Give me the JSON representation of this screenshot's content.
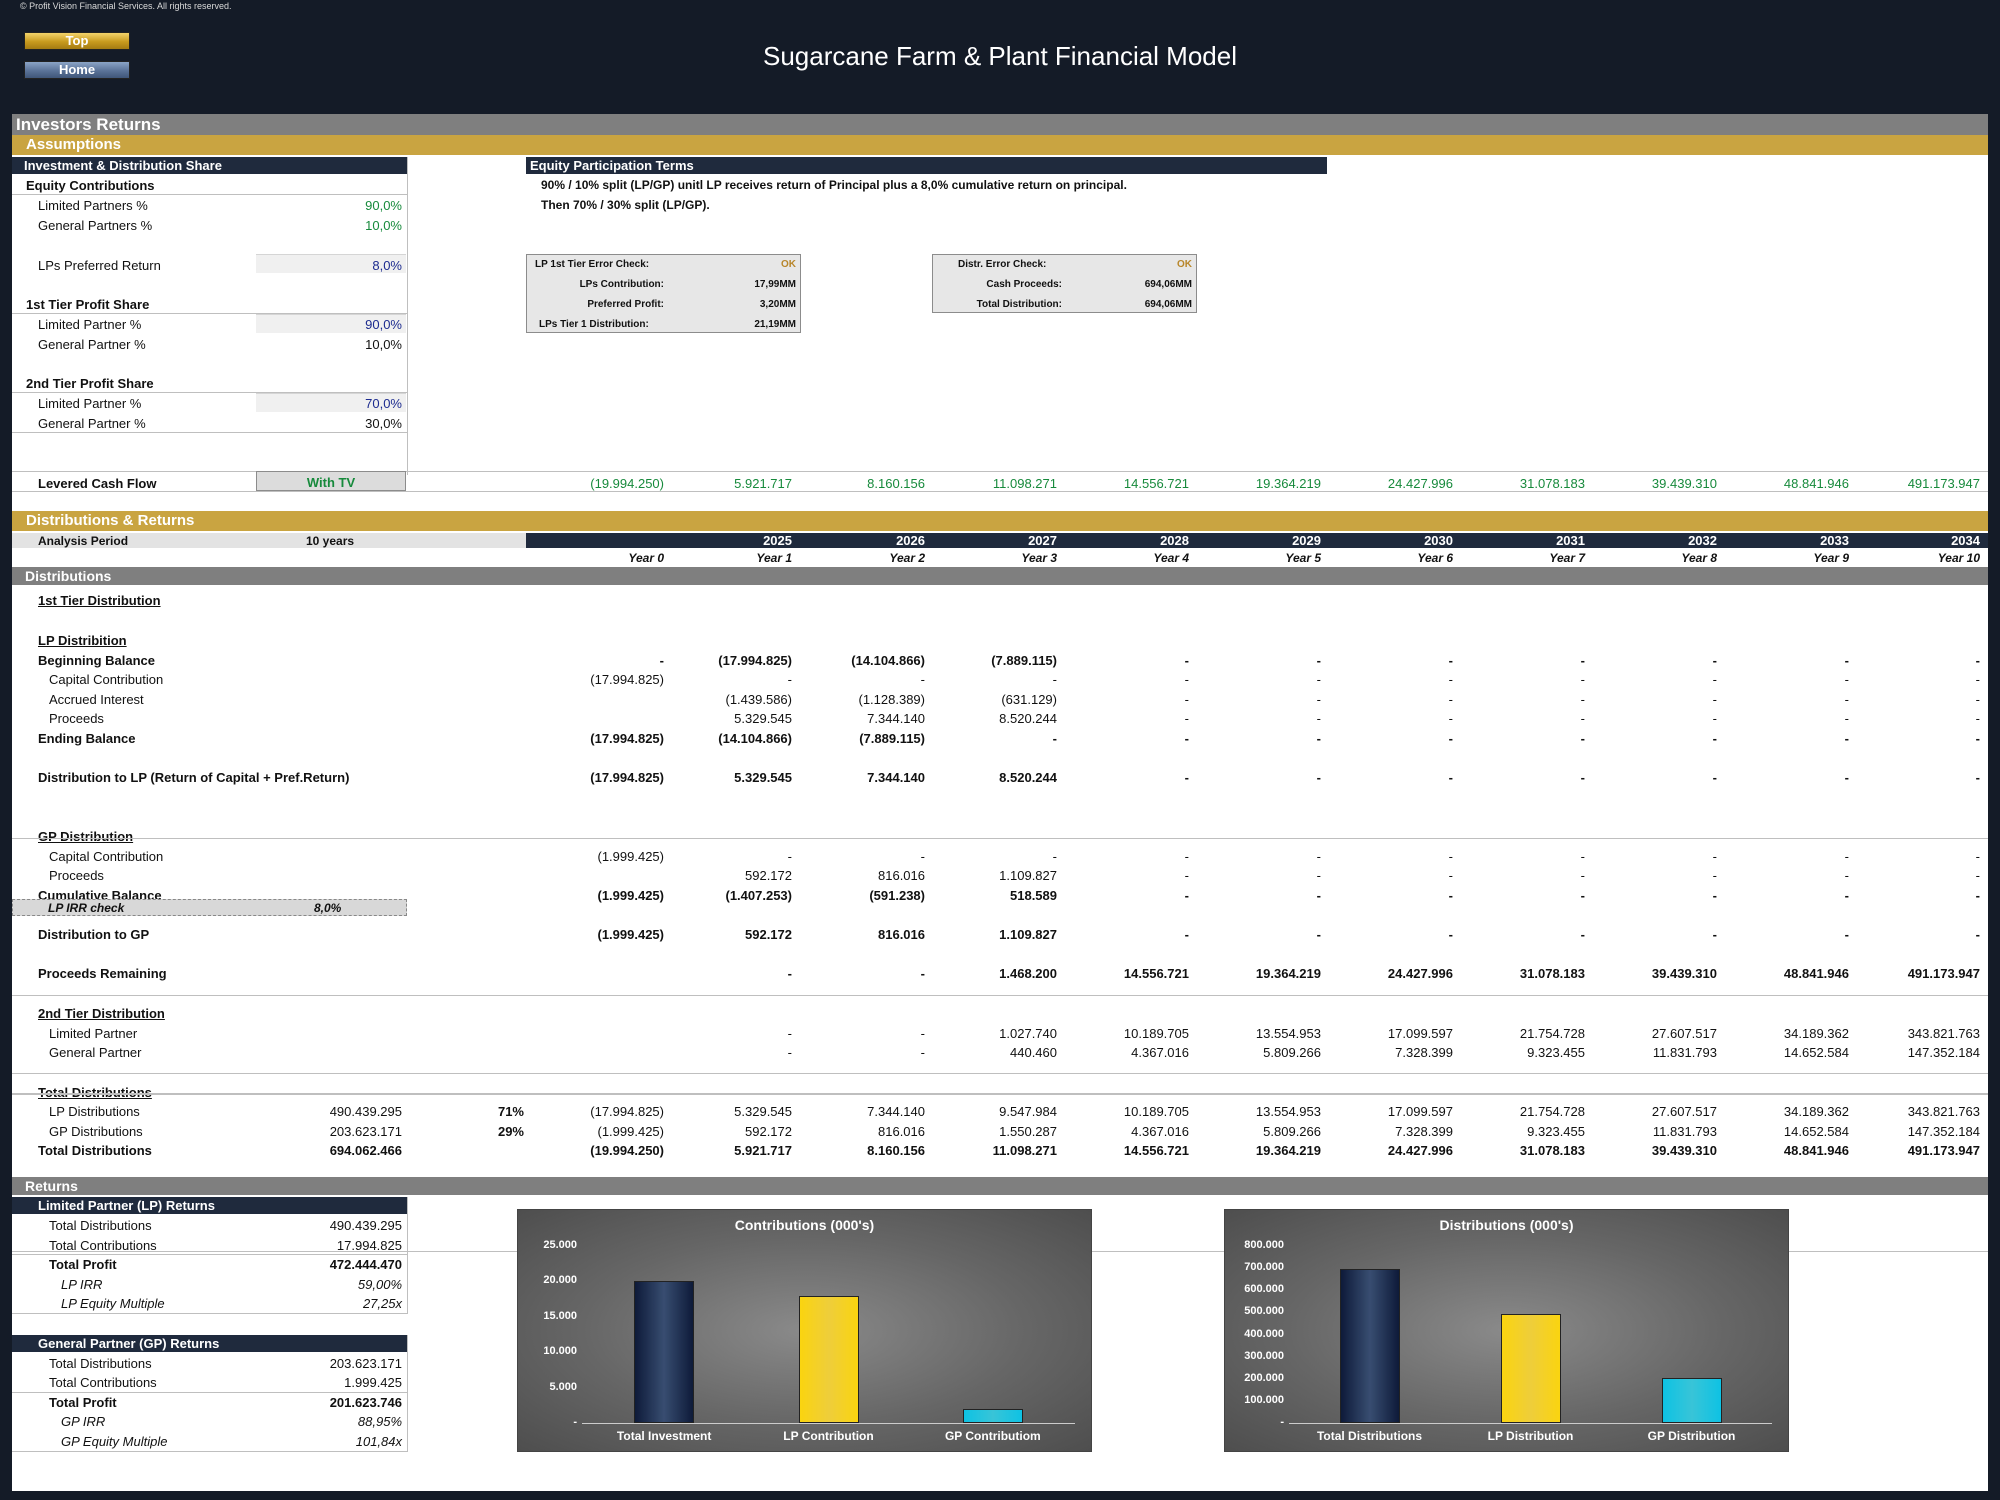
{
  "app": {
    "copyright": "© Profit Vision Financial Services. All rights reserved.",
    "title": "Sugarcane Farm & Plant Financial Model",
    "nav_top": "Top",
    "nav_home": "Home"
  },
  "sections": {
    "main": "Investors Returns",
    "assumptions": "Assumptions",
    "dist_returns": "Distributions & Returns",
    "distributions": "Distributions",
    "returns": "Returns"
  },
  "assump": {
    "header": "Investment & Distribution Share",
    "equity_contrib": "Equity Contributions",
    "lp_pct_label": "Limited Partners %",
    "lp_pct": "90,0%",
    "gp_pct_label": "General Partners %",
    "gp_pct": "10,0%",
    "pref_label": "LPs Preferred Return",
    "pref": "8,0%",
    "tier1": "1st Tier Profit Share",
    "t1_lp_label": "Limited Partner %",
    "t1_lp": "90,0%",
    "t1_gp_label": "General Partner %",
    "t1_gp": "10,0%",
    "tier2": "2nd Tier Profit Share",
    "t2_lp_label": "Limited Partner %",
    "t2_lp": "70,0%",
    "t2_gp_label": "General Partner %",
    "t2_gp": "30,0%"
  },
  "terms": {
    "header": "Equity Participation Terms",
    "line1": "90% / 10% split (LP/GP) unitl LP receives return of Principal plus a 8,0% cumulative return on principal.",
    "line2": "Then 70% / 30% split (LP/GP)."
  },
  "check1": {
    "r1l": "LP 1st Tier Error Check:",
    "r1v": "OK",
    "r2l": "LPs Contribution:",
    "r2v": "17,99MM",
    "r3l": "Preferred Profit:",
    "r3v": "3,20MM",
    "r4l": "LPs Tier 1 Distribution:",
    "r4v": "21,19MM"
  },
  "check2": {
    "r1l": "Distr. Error Check:",
    "r1v": "OK",
    "r2l": "Cash Proceeds:",
    "r2v": "694,06MM",
    "r3l": "Total Distribution:",
    "r3v": "694,06MM"
  },
  "levered": {
    "label": "Levered Cash Flow",
    "option": "With TV",
    "values": [
      "(19.994.250)",
      "5.921.717",
      "8.160.156",
      "11.098.271",
      "14.556.721",
      "19.364.219",
      "24.427.996",
      "31.078.183",
      "39.439.310",
      "48.841.946",
      "491.173.947"
    ]
  },
  "period": {
    "label": "Analysis Period",
    "value": "10 years"
  },
  "years": [
    "2025",
    "2026",
    "2027",
    "2028",
    "2029",
    "2030",
    "2031",
    "2032",
    "2033",
    "2034"
  ],
  "year_labels": [
    "Year 0",
    "Year 1",
    "Year 2",
    "Year 3",
    "Year 4",
    "Year 5",
    "Year 6",
    "Year 7",
    "Year 8",
    "Year 9",
    "Year 10"
  ],
  "rows": [
    {
      "label": "1st Tier Distribution",
      "style": "b u",
      "y": 591,
      "values": []
    },
    {
      "label": "LP Distribition",
      "style": "b u",
      "y": 631,
      "values": []
    },
    {
      "label": "Beginning Balance",
      "style": "b",
      "y": 651,
      "values": [
        "-",
        "(17.994.825)",
        "(14.104.866)",
        "(7.889.115)",
        "-",
        "-",
        "-",
        "-",
        "-",
        "-",
        "-"
      ]
    },
    {
      "label": "Capital Contribution",
      "style": "ind",
      "y": 670,
      "values": [
        "(17.994.825)",
        "-",
        "-",
        "-",
        "-",
        "-",
        "-",
        "-",
        "-",
        "-",
        "-"
      ]
    },
    {
      "label": "Accrued Interest",
      "style": "ind",
      "y": 690,
      "values": [
        "",
        "(1.439.586)",
        "(1.128.389)",
        "(631.129)",
        "-",
        "-",
        "-",
        "-",
        "-",
        "-",
        "-"
      ]
    },
    {
      "label": "Proceeds",
      "style": "ind",
      "y": 709,
      "values": [
        "",
        "5.329.545",
        "7.344.140",
        "8.520.244",
        "-",
        "-",
        "-",
        "-",
        "-",
        "-",
        "-"
      ]
    },
    {
      "label": "Ending Balance",
      "style": "b",
      "y": 729,
      "values": [
        "(17.994.825)",
        "(14.104.866)",
        "(7.889.115)",
        "-",
        "-",
        "-",
        "-",
        "-",
        "-",
        "-",
        "-"
      ]
    },
    {
      "label": "Distribution to LP (Return of Capital + Pref.Return)",
      "style": "b",
      "y": 768,
      "values": [
        "(17.994.825)",
        "5.329.545",
        "7.344.140",
        "8.520.244",
        "-",
        "-",
        "-",
        "-",
        "-",
        "-",
        "-"
      ]
    },
    {
      "label": "GP Distribution",
      "style": "b u",
      "y": 827,
      "values": []
    },
    {
      "label": "Capital Contribution",
      "style": "ind",
      "y": 847,
      "values": [
        "(1.999.425)",
        "-",
        "-",
        "-",
        "-",
        "-",
        "-",
        "-",
        "-",
        "-",
        "-"
      ]
    },
    {
      "label": "Proceeds",
      "style": "ind",
      "y": 866,
      "values": [
        "",
        "592.172",
        "816.016",
        "1.109.827",
        "-",
        "-",
        "-",
        "-",
        "-",
        "-",
        "-"
      ]
    },
    {
      "label": "Cumulative Balance",
      "style": "b",
      "y": 886,
      "values": [
        "(1.999.425)",
        "(1.407.253)",
        "(591.238)",
        "518.589",
        "-",
        "-",
        "-",
        "-",
        "-",
        "-",
        "-"
      ]
    },
    {
      "label": "Distribution to GP",
      "style": "b",
      "y": 925,
      "values": [
        "(1.999.425)",
        "592.172",
        "816.016",
        "1.109.827",
        "-",
        "-",
        "-",
        "-",
        "-",
        "-",
        "-"
      ]
    },
    {
      "label": "Proceeds Remaining",
      "style": "b",
      "y": 964,
      "values": [
        "",
        "-",
        "-",
        "1.468.200",
        "14.556.721",
        "19.364.219",
        "24.427.996",
        "31.078.183",
        "39.439.310",
        "48.841.946",
        "491.173.947"
      ]
    },
    {
      "label": "2nd Tier Distribution",
      "style": "b u",
      "y": 1004,
      "values": []
    },
    {
      "label": "Limited Partner",
      "style": "ind",
      "y": 1024,
      "values": [
        "",
        "-",
        "-",
        "1.027.740",
        "10.189.705",
        "13.554.953",
        "17.099.597",
        "21.754.728",
        "27.607.517",
        "34.189.362",
        "343.821.763"
      ]
    },
    {
      "label": "General Partner",
      "style": "ind",
      "y": 1043,
      "values": [
        "",
        "-",
        "-",
        "440.460",
        "4.367.016",
        "5.809.266",
        "7.328.399",
        "9.323.455",
        "11.831.793",
        "14.652.584",
        "147.352.184"
      ]
    },
    {
      "label": "Total Distributions",
      "style": "b u",
      "y": 1083,
      "values": []
    },
    {
      "label": "LP Distributions",
      "style": "ind",
      "y": 1102,
      "total": "490.439.295",
      "pct": "71%",
      "values": [
        "(17.994.825)",
        "5.329.545",
        "7.344.140",
        "9.547.984",
        "10.189.705",
        "13.554.953",
        "17.099.597",
        "21.754.728",
        "27.607.517",
        "34.189.362",
        "343.821.763"
      ]
    },
    {
      "label": "GP Distributions",
      "style": "ind",
      "y": 1122,
      "total": "203.623.171",
      "pct": "29%",
      "values": [
        "(1.999.425)",
        "592.172",
        "816.016",
        "1.550.287",
        "4.367.016",
        "5.809.266",
        "7.328.399",
        "9.323.455",
        "11.831.793",
        "14.652.584",
        "147.352.184"
      ]
    },
    {
      "label": "Total Distributions",
      "style": "b",
      "y": 1141,
      "total": "694.062.466",
      "values": [
        "(19.994.250)",
        "5.921.717",
        "8.160.156",
        "11.098.271",
        "14.556.721",
        "19.364.219",
        "24.427.996",
        "31.078.183",
        "39.439.310",
        "48.841.946",
        "491.173.947"
      ]
    }
  ],
  "irr_check": {
    "label": "LP IRR check",
    "value": "8,0%"
  },
  "lp_returns": {
    "header": "Limited Partner (LP) Returns",
    "r1l": "Total Distributions",
    "r1v": "490.439.295",
    "r2l": "Total Contributions",
    "r2v": "17.994.825",
    "r3l": "Total Profit",
    "r3v": "472.444.470",
    "r4l": "LP IRR",
    "r4v": "59,00%",
    "r5l": "LP Equity Multiple",
    "r5v": "27,25x"
  },
  "gp_returns": {
    "header": "General Partner (GP) Returns",
    "r1l": "Total Distributions",
    "r1v": "203.623.171",
    "r2l": "Total Contributions",
    "r2v": "1.999.425",
    "r3l": "Total Profit",
    "r3v": "201.623.746",
    "r4l": "GP IRR",
    "r4v": "88,95%",
    "r5l": "GP Equity Multiple",
    "r5v": "101,84x"
  },
  "chart_data": [
    {
      "type": "bar",
      "title": "Contributions (000's)",
      "categories": [
        "Total Investment",
        "LP Contribution",
        "GP Contributiom"
      ],
      "values": [
        19994,
        17995,
        1999
      ],
      "ylim": [
        0,
        25000
      ],
      "ticks": [
        "25.000",
        "20.000",
        "15.000",
        "10.000",
        "5.000",
        "-"
      ],
      "colors": [
        "#2a3a55",
        "#e6b52c",
        "#2aa7c4"
      ]
    },
    {
      "type": "bar",
      "title": "Distributions (000's)",
      "categories": [
        "Total Distributions",
        "LP Distribution",
        "GP Distribution"
      ],
      "values": [
        694062,
        490439,
        203623
      ],
      "ylim": [
        0,
        800000
      ],
      "ticks": [
        "800.000",
        "700.000",
        "600.000",
        "500.000",
        "400.000",
        "300.000",
        "200.000",
        "100.000",
        "-"
      ],
      "colors": [
        "#2a3a55",
        "#e6b52c",
        "#2aa7c4"
      ]
    }
  ]
}
